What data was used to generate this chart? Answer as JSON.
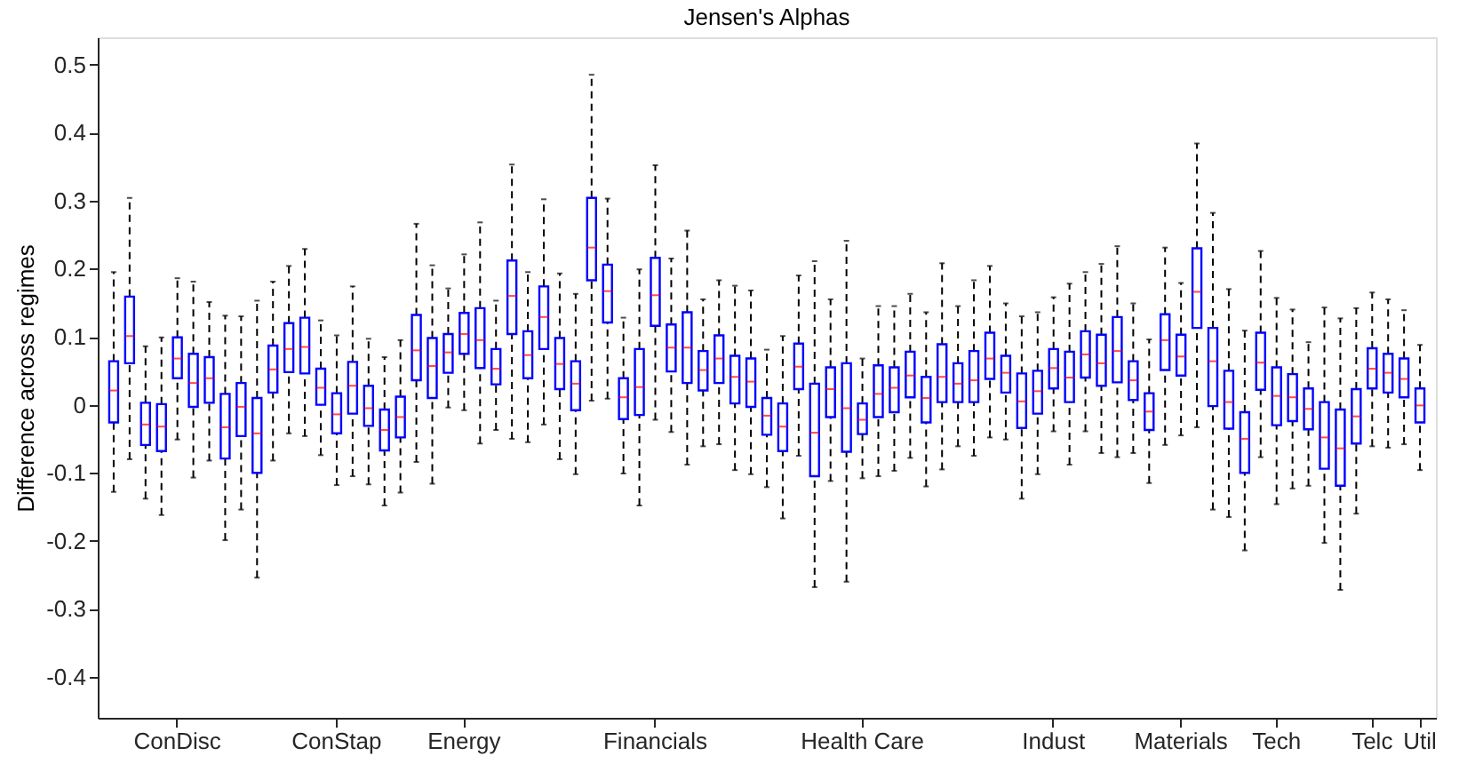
{
  "chart_data": {
    "type": "box",
    "title": "Jensen's Alphas",
    "ylabel": "Difference across regimes",
    "categories": [
      null,
      null,
      null,
      null,
      "ConDisc",
      null,
      null,
      null,
      null,
      null,
      null,
      null,
      null,
      null,
      "ConStap",
      null,
      null,
      null,
      null,
      null,
      null,
      null,
      "Energy",
      null,
      null,
      null,
      null,
      null,
      null,
      null,
      null,
      null,
      null,
      null,
      "Financials",
      null,
      null,
      null,
      null,
      null,
      null,
      null,
      null,
      null,
      null,
      null,
      null,
      "Health Care",
      null,
      null,
      null,
      null,
      null,
      null,
      null,
      null,
      null,
      null,
      null,
      "Indust",
      null,
      null,
      null,
      null,
      null,
      null,
      null,
      "Materials",
      null,
      null,
      null,
      null,
      null,
      "Tech",
      null,
      null,
      null,
      null,
      null,
      "Telc",
      null,
      null,
      "Util"
    ],
    "color": "#0000ff",
    "ylim": [
      -0.46,
      0.54
    ],
    "yticks": [
      -0.4,
      -0.3,
      -0.2,
      -0.1,
      0,
      0.1,
      0.2,
      0.3,
      0.4,
      0.5
    ],
    "boxes": [
      {
        "low": -0.128,
        "q1": -0.026,
        "median": 0.021,
        "q3": 0.064,
        "high": 0.195
      },
      {
        "low": -0.08,
        "q1": 0.061,
        "median": 0.101,
        "q3": 0.159,
        "high": 0.304
      },
      {
        "low": -0.138,
        "q1": -0.059,
        "median": -0.029,
        "q3": 0.003,
        "high": 0.086
      },
      {
        "low": -0.162,
        "q1": -0.068,
        "median": -0.032,
        "q3": 0.001,
        "high": 0.099
      },
      {
        "low": -0.051,
        "q1": 0.039,
        "median": 0.068,
        "q3": 0.099,
        "high": 0.186
      },
      {
        "low": -0.107,
        "q1": -0.003,
        "median": 0.032,
        "q3": 0.075,
        "high": 0.181
      },
      {
        "low": -0.082,
        "q1": 0.003,
        "median": 0.039,
        "q3": 0.07,
        "high": 0.151
      },
      {
        "low": -0.199,
        "q1": -0.079,
        "median": -0.033,
        "q3": 0.016,
        "high": 0.131
      },
      {
        "low": -0.154,
        "q1": -0.046,
        "median": -0.003,
        "q3": 0.032,
        "high": 0.13
      },
      {
        "low": -0.254,
        "q1": -0.1,
        "median": -0.042,
        "q3": 0.01,
        "high": 0.153
      },
      {
        "low": -0.082,
        "q1": 0.018,
        "median": 0.052,
        "q3": 0.087,
        "high": 0.181
      },
      {
        "low": -0.042,
        "q1": 0.048,
        "median": 0.082,
        "q3": 0.12,
        "high": 0.204
      },
      {
        "low": -0.046,
        "q1": 0.046,
        "median": 0.085,
        "q3": 0.128,
        "high": 0.229
      },
      {
        "low": -0.074,
        "q1": 0.0,
        "median": 0.025,
        "q3": 0.053,
        "high": 0.124
      },
      {
        "low": -0.118,
        "q1": -0.042,
        "median": -0.014,
        "q3": 0.017,
        "high": 0.102
      },
      {
        "low": -0.105,
        "q1": -0.013,
        "median": 0.028,
        "q3": 0.063,
        "high": 0.174
      },
      {
        "low": -0.117,
        "q1": -0.031,
        "median": -0.005,
        "q3": 0.028,
        "high": 0.097
      },
      {
        "low": -0.148,
        "q1": -0.067,
        "median": -0.037,
        "q3": -0.007,
        "high": 0.07
      },
      {
        "low": -0.129,
        "q1": -0.048,
        "median": -0.018,
        "q3": 0.012,
        "high": 0.095
      },
      {
        "low": -0.084,
        "q1": 0.036,
        "median": 0.08,
        "q3": 0.132,
        "high": 0.266
      },
      {
        "low": -0.116,
        "q1": 0.01,
        "median": 0.057,
        "q3": 0.098,
        "high": 0.205
      },
      {
        "low": -0.004,
        "q1": 0.047,
        "median": 0.077,
        "q3": 0.104,
        "high": 0.171
      },
      {
        "low": -0.008,
        "q1": 0.075,
        "median": 0.104,
        "q3": 0.135,
        "high": 0.221
      },
      {
        "low": -0.057,
        "q1": 0.054,
        "median": 0.095,
        "q3": 0.142,
        "high": 0.268
      },
      {
        "low": -0.037,
        "q1": 0.03,
        "median": 0.053,
        "q3": 0.082,
        "high": 0.153
      },
      {
        "low": -0.05,
        "q1": 0.104,
        "median": 0.16,
        "q3": 0.212,
        "high": 0.353
      },
      {
        "low": -0.055,
        "q1": 0.039,
        "median": 0.073,
        "q3": 0.108,
        "high": 0.195
      },
      {
        "low": -0.029,
        "q1": 0.082,
        "median": 0.129,
        "q3": 0.174,
        "high": 0.302
      },
      {
        "low": -0.08,
        "q1": 0.023,
        "median": 0.06,
        "q3": 0.098,
        "high": 0.193
      },
      {
        "low": -0.102,
        "q1": -0.008,
        "median": 0.031,
        "q3": 0.064,
        "high": 0.163
      },
      {
        "low": 0.006,
        "q1": 0.183,
        "median": 0.231,
        "q3": 0.304,
        "high": 0.485
      },
      {
        "low": 0.009,
        "q1": 0.121,
        "median": 0.167,
        "q3": 0.206,
        "high": 0.303
      },
      {
        "low": -0.101,
        "q1": -0.021,
        "median": 0.011,
        "q3": 0.039,
        "high": 0.128
      },
      {
        "low": -0.148,
        "q1": -0.015,
        "median": 0.026,
        "q3": 0.082,
        "high": 0.199
      },
      {
        "low": -0.022,
        "q1": 0.116,
        "median": 0.161,
        "q3": 0.216,
        "high": 0.352
      },
      {
        "low": -0.04,
        "q1": 0.049,
        "median": 0.084,
        "q3": 0.118,
        "high": 0.215
      },
      {
        "low": -0.088,
        "q1": 0.032,
        "median": 0.084,
        "q3": 0.136,
        "high": 0.256
      },
      {
        "low": -0.061,
        "q1": 0.021,
        "median": 0.051,
        "q3": 0.079,
        "high": 0.155
      },
      {
        "low": -0.058,
        "q1": 0.032,
        "median": 0.068,
        "q3": 0.102,
        "high": 0.183
      },
      {
        "low": -0.096,
        "q1": 0.002,
        "median": 0.041,
        "q3": 0.072,
        "high": 0.175
      },
      {
        "low": -0.102,
        "q1": -0.003,
        "median": 0.034,
        "q3": 0.068,
        "high": 0.168
      },
      {
        "low": -0.121,
        "q1": -0.044,
        "median": -0.016,
        "q3": 0.01,
        "high": 0.081
      },
      {
        "low": -0.167,
        "q1": -0.068,
        "median": -0.032,
        "q3": 0.002,
        "high": 0.101
      },
      {
        "low": -0.075,
        "q1": 0.023,
        "median": 0.056,
        "q3": 0.09,
        "high": 0.19
      },
      {
        "low": -0.268,
        "q1": -0.105,
        "median": -0.041,
        "q3": 0.031,
        "high": 0.211
      },
      {
        "low": -0.112,
        "q1": -0.018,
        "median": 0.023,
        "q3": 0.055,
        "high": 0.155
      },
      {
        "low": -0.26,
        "q1": -0.069,
        "median": -0.005,
        "q3": 0.061,
        "high": 0.241
      },
      {
        "low": -0.108,
        "q1": -0.043,
        "median": -0.022,
        "q3": 0.002,
        "high": 0.068
      },
      {
        "low": -0.105,
        "q1": -0.018,
        "median": 0.016,
        "q3": 0.058,
        "high": 0.145
      },
      {
        "low": -0.097,
        "q1": -0.011,
        "median": 0.025,
        "q3": 0.055,
        "high": 0.145
      },
      {
        "low": -0.078,
        "q1": 0.011,
        "median": 0.043,
        "q3": 0.078,
        "high": 0.163
      },
      {
        "low": -0.12,
        "q1": -0.026,
        "median": 0.01,
        "q3": 0.041,
        "high": 0.136
      },
      {
        "low": -0.095,
        "q1": 0.004,
        "median": 0.041,
        "q3": 0.089,
        "high": 0.208
      },
      {
        "low": -0.061,
        "q1": 0.004,
        "median": 0.031,
        "q3": 0.061,
        "high": 0.145
      },
      {
        "low": -0.075,
        "q1": 0.004,
        "median": 0.036,
        "q3": 0.079,
        "high": 0.183
      },
      {
        "low": -0.048,
        "q1": 0.038,
        "median": 0.068,
        "q3": 0.106,
        "high": 0.204
      },
      {
        "low": -0.051,
        "q1": 0.018,
        "median": 0.047,
        "q3": 0.072,
        "high": 0.149
      },
      {
        "low": -0.138,
        "q1": -0.034,
        "median": 0.005,
        "q3": 0.046,
        "high": 0.13
      },
      {
        "low": -0.102,
        "q1": -0.013,
        "median": 0.02,
        "q3": 0.05,
        "high": 0.136
      },
      {
        "low": -0.039,
        "q1": 0.024,
        "median": 0.054,
        "q3": 0.082,
        "high": 0.158
      },
      {
        "low": -0.088,
        "q1": 0.004,
        "median": 0.04,
        "q3": 0.078,
        "high": 0.178
      },
      {
        "low": -0.039,
        "q1": 0.04,
        "median": 0.074,
        "q3": 0.108,
        "high": 0.195
      },
      {
        "low": -0.071,
        "q1": 0.028,
        "median": 0.061,
        "q3": 0.103,
        "high": 0.207
      },
      {
        "low": -0.077,
        "q1": 0.033,
        "median": 0.079,
        "q3": 0.129,
        "high": 0.233
      },
      {
        "low": -0.071,
        "q1": 0.007,
        "median": 0.036,
        "q3": 0.064,
        "high": 0.149
      },
      {
        "low": -0.115,
        "q1": -0.037,
        "median": -0.01,
        "q3": 0.017,
        "high": 0.096
      },
      {
        "low": -0.059,
        "q1": 0.051,
        "median": 0.095,
        "q3": 0.133,
        "high": 0.231
      },
      {
        "low": -0.045,
        "q1": 0.043,
        "median": 0.071,
        "q3": 0.103,
        "high": 0.179
      },
      {
        "low": -0.033,
        "q1": 0.113,
        "median": 0.166,
        "q3": 0.23,
        "high": 0.384
      },
      {
        "low": -0.154,
        "q1": -0.002,
        "median": 0.064,
        "q3": 0.113,
        "high": 0.282
      },
      {
        "low": -0.165,
        "q1": -0.035,
        "median": 0.004,
        "q3": 0.05,
        "high": 0.17
      },
      {
        "low": -0.214,
        "q1": -0.1,
        "median": -0.05,
        "q3": -0.011,
        "high": 0.109
      },
      {
        "low": -0.077,
        "q1": 0.022,
        "median": 0.062,
        "q3": 0.106,
        "high": 0.226
      },
      {
        "low": -0.146,
        "q1": -0.03,
        "median": 0.013,
        "q3": 0.055,
        "high": 0.157
      },
      {
        "low": -0.123,
        "q1": -0.024,
        "median": 0.011,
        "q3": 0.045,
        "high": 0.14
      },
      {
        "low": -0.119,
        "q1": -0.036,
        "median": -0.006,
        "q3": 0.024,
        "high": 0.092
      },
      {
        "low": -0.203,
        "q1": -0.094,
        "median": -0.048,
        "q3": 0.004,
        "high": 0.143
      },
      {
        "low": -0.272,
        "q1": -0.119,
        "median": -0.064,
        "q3": -0.007,
        "high": 0.127
      },
      {
        "low": -0.16,
        "q1": -0.057,
        "median": -0.017,
        "q3": 0.023,
        "high": 0.142
      },
      {
        "low": -0.061,
        "q1": 0.024,
        "median": 0.053,
        "q3": 0.083,
        "high": 0.165
      },
      {
        "low": -0.063,
        "q1": 0.018,
        "median": 0.047,
        "q3": 0.075,
        "high": 0.155
      },
      {
        "low": -0.058,
        "q1": 0.011,
        "median": 0.038,
        "q3": 0.068,
        "high": 0.139
      },
      {
        "low": -0.096,
        "q1": -0.026,
        "median": -0.001,
        "q3": 0.024,
        "high": 0.088
      }
    ]
  }
}
